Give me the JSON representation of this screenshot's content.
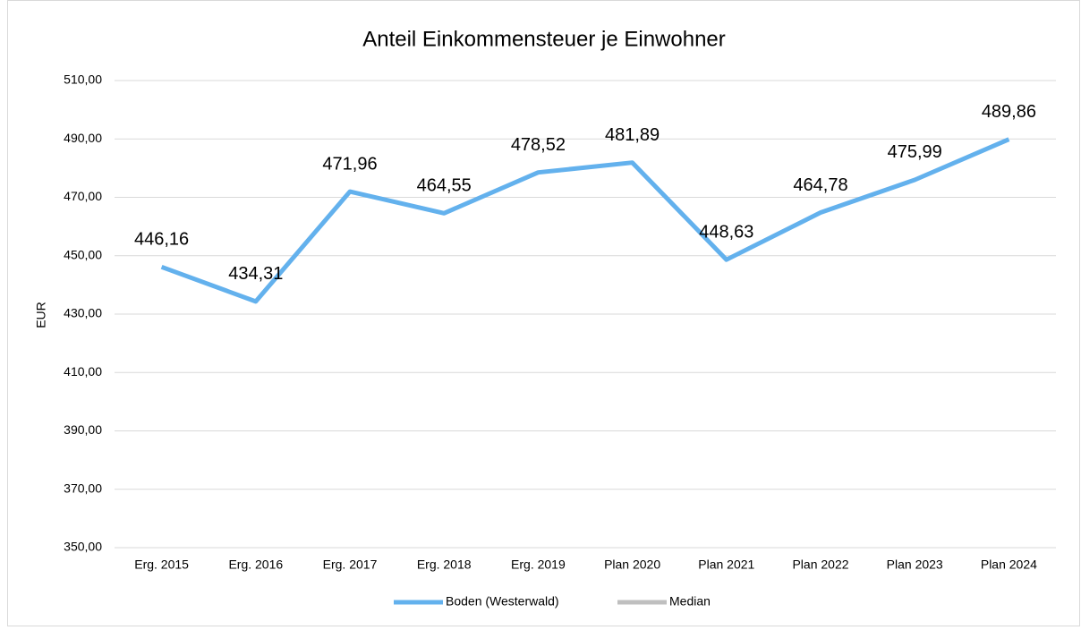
{
  "chart_data": {
    "type": "line",
    "title": "Anteil Einkommensteuer je Einwohner",
    "y_label": "EUR",
    "categories": [
      "Erg. 2015",
      "Erg. 2016",
      "Erg. 2017",
      "Erg. 2018",
      "Erg. 2019",
      "Plan 2020",
      "Plan 2021",
      "Plan 2022",
      "Plan 2023",
      "Plan 2024"
    ],
    "series": [
      {
        "name": "Boden (Westerwald)",
        "color": "#63b1ed",
        "values": [
          446.16,
          434.31,
          471.96,
          464.55,
          478.52,
          481.89,
          448.63,
          464.78,
          475.99,
          489.86
        ],
        "value_labels": [
          "446,16",
          "434,31",
          "471,96",
          "464,55",
          "478,52",
          "481,89",
          "448,63",
          "464,78",
          "475,99",
          "489,86"
        ]
      },
      {
        "name": "Median",
        "color": "#bfbfbf",
        "values": [
          null,
          null,
          null,
          null,
          null,
          null,
          null,
          null,
          null,
          null
        ]
      }
    ],
    "ylim": [
      350,
      510
    ],
    "yticks": [
      {
        "value": 350,
        "label": "350,00"
      },
      {
        "value": 370,
        "label": "370,00"
      },
      {
        "value": 390,
        "label": "390,00"
      },
      {
        "value": 410,
        "label": "410,00"
      },
      {
        "value": 430,
        "label": "430,00"
      },
      {
        "value": 450,
        "label": "450,00"
      },
      {
        "value": 470,
        "label": "470,00"
      },
      {
        "value": 490,
        "label": "490,00"
      },
      {
        "value": 510,
        "label": "510,00"
      }
    ],
    "grid": true,
    "legend": "bottom"
  }
}
